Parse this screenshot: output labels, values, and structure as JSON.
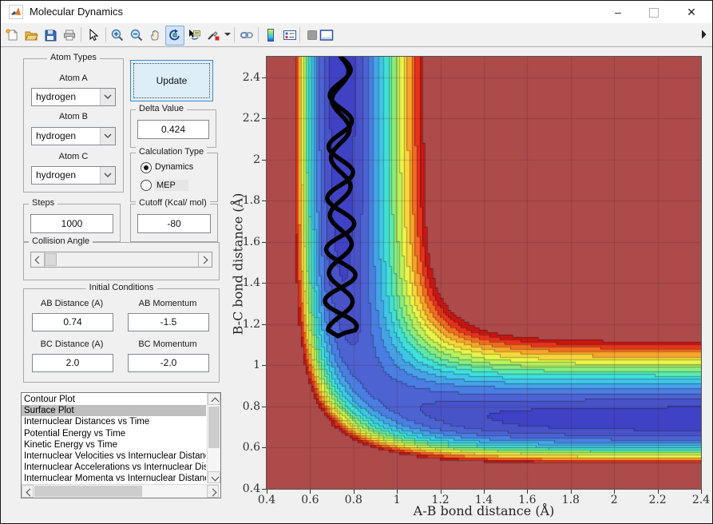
{
  "window": {
    "title": "Molecular Dynamics",
    "minimize_glyph": "–",
    "close_glyph": "✕"
  },
  "toolbar": {
    "buttons": [
      "new-figure",
      "open-file",
      "save-figure",
      "print-figure",
      "edit-plot",
      "zoom-in",
      "zoom-out",
      "pan",
      "rotate-3d",
      "data-cursor",
      "brush-data",
      "link-plot",
      "insert-colorbar",
      "insert-legend",
      "hide-plot-tools",
      "show-plot-tools"
    ],
    "active_button": "rotate-3d"
  },
  "panels": {
    "atom_types": {
      "title": "Atom Types",
      "fields": [
        {
          "label": "Atom A",
          "value": "hydrogen"
        },
        {
          "label": "Atom B",
          "value": "hydrogen"
        },
        {
          "label": "Atom C",
          "value": "hydrogen"
        }
      ]
    },
    "update_label": "Update",
    "delta": {
      "title": "Delta Value",
      "value": "0.424"
    },
    "calculation_type": {
      "title": "Calculation Type",
      "options": [
        {
          "label": "Dynamics",
          "selected": true
        },
        {
          "label": "MEP",
          "selected": false
        }
      ]
    },
    "steps": {
      "title": "Steps",
      "value": "1000"
    },
    "cutoff": {
      "title": "Cutoff (Kcal/ mol)",
      "value": "-80"
    },
    "collision_angle": {
      "title": "Collision Angle"
    },
    "initial_conditions": {
      "title": "Initial Conditions",
      "fields": [
        {
          "label": "AB Distance (A)",
          "value": "0.74"
        },
        {
          "label": "AB Momentum",
          "value": "-1.5"
        },
        {
          "label": "BC Distance (A)",
          "value": "2.0"
        },
        {
          "label": "BC Momentum",
          "value": "-2.0"
        }
      ]
    },
    "plot_list": {
      "items": [
        "Contour Plot",
        "Surface Plot",
        "Internuclear Distances vs Time",
        "Potential Energy vs Time",
        "Kinetic Energy vs Time",
        "Internuclear Velocities vs Internuclear Distance",
        "Internuclear Accelerations vs Internuclear Distance",
        "Internuclear Momenta vs Internuclear Distance"
      ],
      "selected_index": 1
    }
  },
  "chart_data": {
    "type": "contour",
    "xlabel": "A-B bond distance (Å)",
    "ylabel": "B-C bond distance (Å)",
    "x_ticks": [
      "0.4",
      "0.6",
      "0.8",
      "1",
      "1.2",
      "1.4",
      "1.6",
      "1.8",
      "2",
      "2.2",
      "2.4"
    ],
    "y_ticks": [
      "0.4",
      "0.6",
      "0.8",
      "1",
      "1.2",
      "1.4",
      "1.6",
      "1.8",
      "2",
      "2.2",
      "2.4"
    ],
    "x_range": [
      0.4,
      2.4
    ],
    "y_range": [
      0.4,
      2.5
    ],
    "grid": true,
    "surface": {
      "model": "LEPS",
      "D": 109.458,
      "beta": 1.9426,
      "re": 0.7419,
      "sato": 0.19,
      "cutoff": -80,
      "vmin": -110,
      "bands": 16,
      "grid_cells_x": 168,
      "grid_cells_y": 176
    },
    "palette": [
      "#3f42c4",
      "#4853c8",
      "#4d63d2",
      "#4a7ee2",
      "#46a2e8",
      "#3fc6e6",
      "#40e0da",
      "#5ce8ac",
      "#8aec7e",
      "#baf25c",
      "#e8f44a",
      "#f8d53a",
      "#f8a42c",
      "#f26c21",
      "#e6331c",
      "#c51715",
      "#ad4b4b"
    ],
    "grid_color": "rgba(80,10,25,0.20)",
    "trajectory": {
      "color": "#000000",
      "width": 5.5,
      "x_center": 0.74,
      "y_top": 2.5,
      "y_turn": 1.17,
      "period": 0.28,
      "amp_down": [
        0.036,
        0.022
      ],
      "amp_up": [
        0.045,
        0.03
      ],
      "phase_rate": 2.73
    }
  }
}
